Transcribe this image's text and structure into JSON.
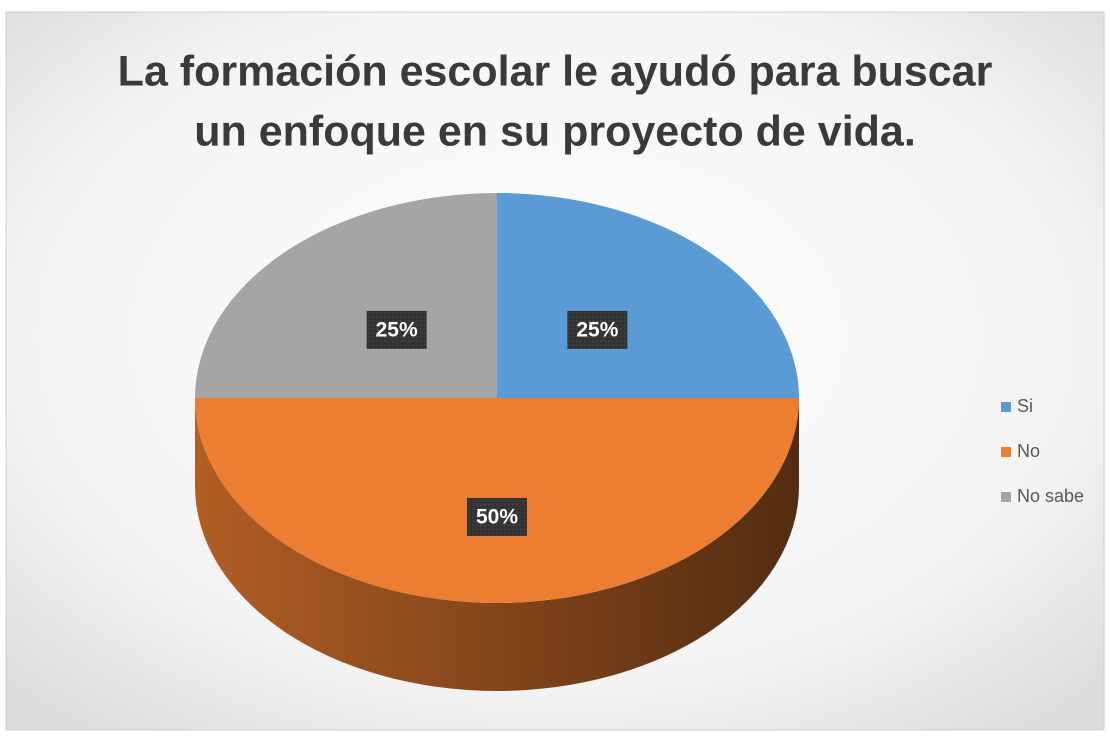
{
  "chart_data": {
    "type": "pie",
    "title": [
      "La formación escolar le ayudó para buscar",
      "un enfoque en su proyecto de vida."
    ],
    "categories": [
      "Si",
      "No",
      "No sabe"
    ],
    "values": [
      25,
      50,
      25
    ],
    "value_labels": [
      "25%",
      "50%",
      "25%"
    ],
    "colors": [
      "#5b9bd5",
      "#ed7d31",
      "#a5a5a5"
    ],
    "legend": "right"
  }
}
